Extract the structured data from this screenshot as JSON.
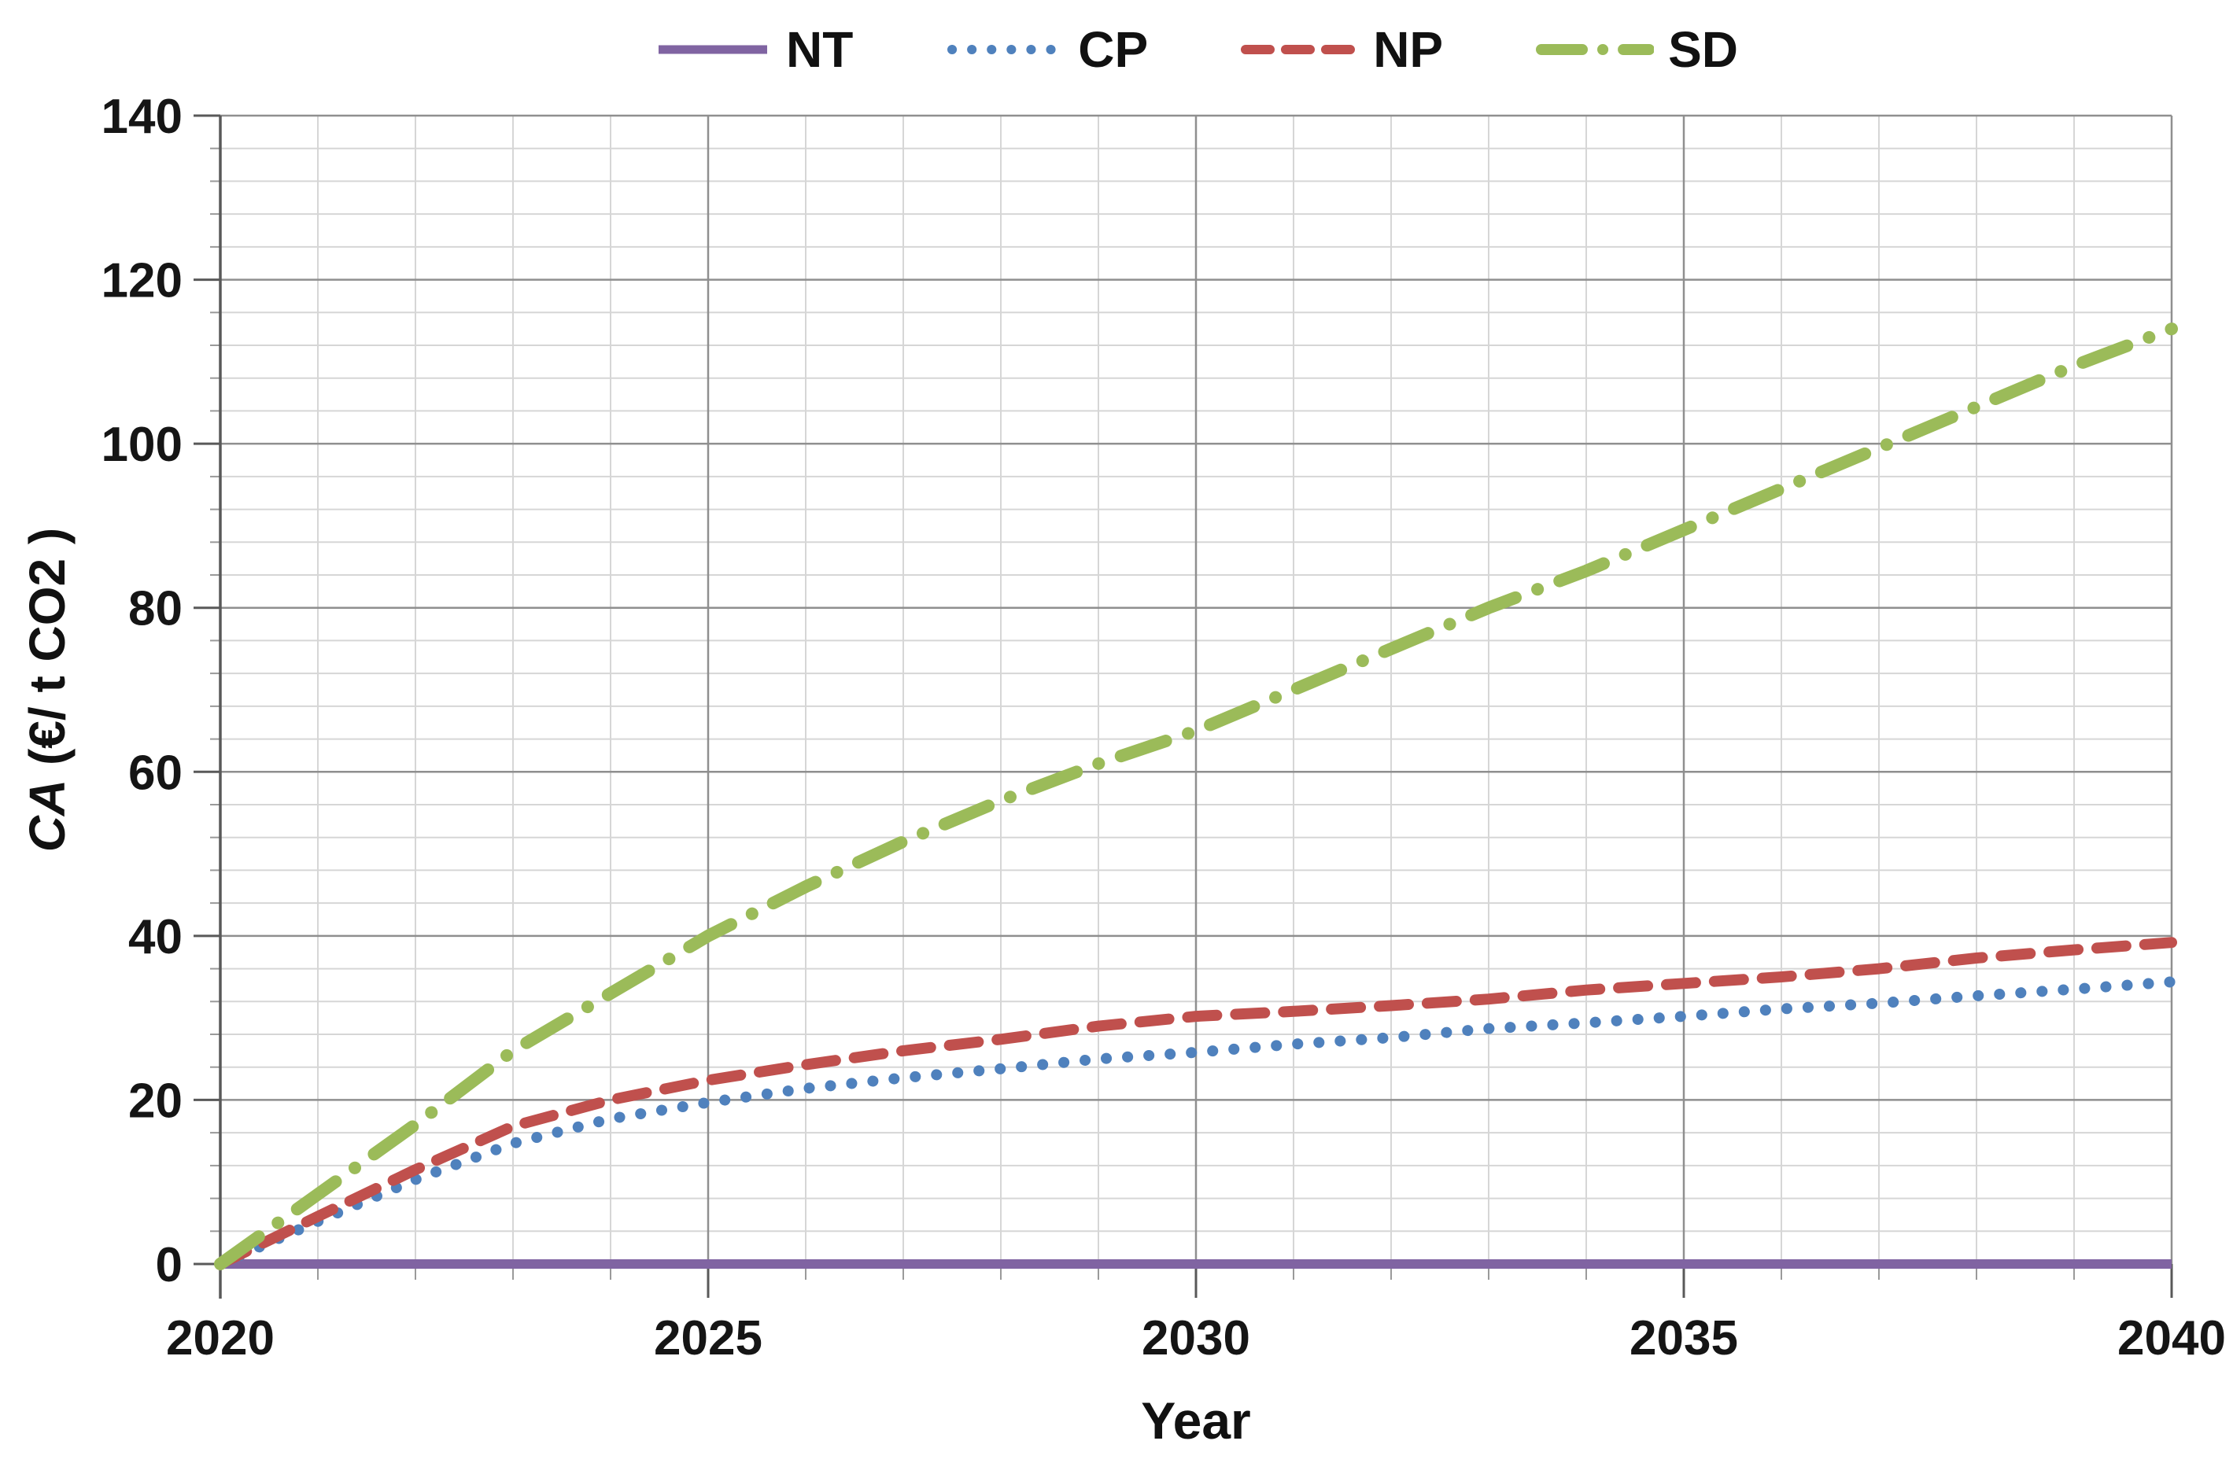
{
  "chart_data": {
    "type": "line",
    "title": "",
    "xlabel": "Year",
    "ylabel": "CA (€/ t CO2 )",
    "ylabel_italic": "CA",
    "ylabel_rest": " (€/ t CO2 )",
    "xlim": [
      2020,
      2040
    ],
    "ylim": [
      0,
      140
    ],
    "x_major": 5,
    "x_minor": 1,
    "y_major": 20,
    "y_minor": 4,
    "grid": true,
    "legend_position": "top",
    "x_ticks": [
      2020,
      2025,
      2030,
      2035,
      2040
    ],
    "x_tick_labels": [
      "2020",
      "2025",
      "2030",
      "2035",
      "2040"
    ],
    "y_ticks": [
      0,
      20,
      40,
      60,
      80,
      100,
      120,
      140
    ],
    "y_tick_labels": [
      "0",
      "20",
      "40",
      "60",
      "80",
      "100",
      "120",
      "140"
    ],
    "x": [
      2020,
      2021,
      2022,
      2023,
      2024,
      2025,
      2026,
      2027,
      2028,
      2029,
      2030,
      2031,
      2032,
      2033,
      2034,
      2035,
      2036,
      2037,
      2038,
      2039,
      2040
    ],
    "series": [
      {
        "name": "NT",
        "color": "#8064A2",
        "style": "solid",
        "values": [
          0,
          0,
          0,
          0,
          0,
          0,
          0,
          0,
          0,
          0,
          0,
          0,
          0,
          0,
          0,
          0,
          0,
          0,
          0,
          0,
          0
        ]
      },
      {
        "name": "CP",
        "color": "#4F81BD",
        "style": "dotted",
        "values": [
          0,
          5.2,
          10.3,
          14.7,
          17.7,
          19.7,
          21.4,
          22.7,
          23.8,
          25.0,
          25.8,
          26.8,
          27.6,
          28.7,
          29.4,
          30.2,
          31.1,
          31.8,
          32.7,
          33.5,
          34.4
        ]
      },
      {
        "name": "NP",
        "color": "#C0504D",
        "style": "dashed",
        "values": [
          0,
          5.8,
          11.5,
          16.8,
          20.0,
          22.4,
          24.3,
          26.0,
          27.4,
          29.0,
          30.2,
          30.8,
          31.5,
          32.3,
          33.4,
          34.2,
          35.0,
          36.0,
          37.3,
          38.3,
          39.2
        ]
      },
      {
        "name": "SD",
        "color": "#9BBB59",
        "style": "dashdot",
        "values": [
          0,
          8.5,
          17.0,
          26.0,
          33.0,
          40.0,
          46.0,
          51.5,
          56.5,
          61.0,
          65.0,
          70.0,
          75.0,
          80.0,
          84.5,
          89.5,
          94.5,
          99.5,
          104.5,
          109.5,
          114.0
        ]
      }
    ],
    "colors": {
      "axis": "#595959",
      "major_grid": "#8f8f8f",
      "minor_grid": "#d6d6d6",
      "text": "#151515"
    }
  }
}
